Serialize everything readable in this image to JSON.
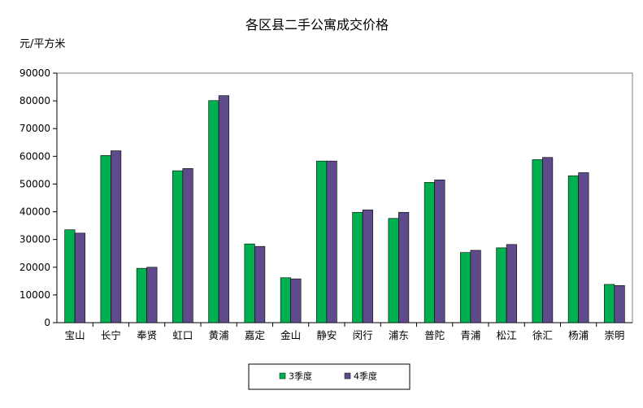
{
  "chart_data": {
    "type": "bar",
    "title": "各区县二手公寓成交价格",
    "ylabel": "元/平方米",
    "xlabel": "",
    "ylim": [
      0,
      90000
    ],
    "yticks": [
      0,
      10000,
      20000,
      30000,
      40000,
      50000,
      60000,
      70000,
      80000,
      90000
    ],
    "grid": false,
    "legend_position": "bottom",
    "categories": [
      "宝山",
      "长宁",
      "奉贤",
      "虹口",
      "黄浦",
      "嘉定",
      "金山",
      "静安",
      "闵行",
      "浦东",
      "普陀",
      "青浦",
      "松江",
      "徐汇",
      "杨浦",
      "崇明"
    ],
    "series": [
      {
        "name": "3季度",
        "color": "#00b050",
        "values": [
          33500,
          60300,
          19600,
          54800,
          80100,
          28400,
          16200,
          58300,
          39800,
          37600,
          50600,
          25300,
          27000,
          58800,
          53000,
          13800
        ]
      },
      {
        "name": "4季度",
        "color": "#5f4b8b",
        "values": [
          32300,
          62000,
          20000,
          55600,
          81900,
          27500,
          15800,
          58300,
          40700,
          39800,
          51500,
          26100,
          28200,
          59600,
          54100,
          13400
        ]
      }
    ]
  }
}
